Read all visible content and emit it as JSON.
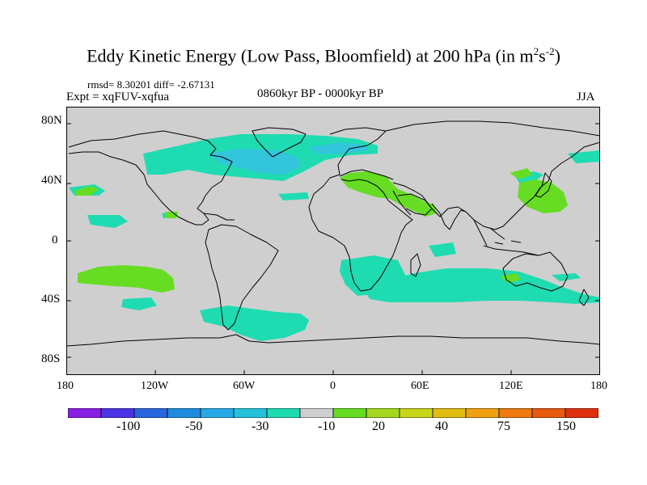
{
  "header": {
    "title_main": "Eddy Kinetic Energy (Low Pass, Bloomfield) at 200 hPa (in m",
    "title_sup1": "2",
    "title_mid": "s",
    "title_sup2": "-2",
    "title_end": ")",
    "rmsd_text": "rmsd= 8.30201 diff= -2.67131",
    "expt_text": "Expt = xqFUV-xqfua",
    "period_text": "0860kyr BP - 0000kyr BP",
    "season_text": "JJA"
  },
  "map": {
    "y_ticks": [
      "80N",
      "40N",
      "0",
      "40S",
      "80S"
    ],
    "x_ticks": [
      "180",
      "120W",
      "60W",
      "0",
      "60E",
      "120E",
      "180"
    ],
    "background_color": "#cfcfcf",
    "coastline_color": "#000000",
    "anomaly_regions": [
      {
        "name": "north-atlantic-negative",
        "level": "-10 to -30",
        "color": "#1fdbb2"
      },
      {
        "name": "north-atlantic-core",
        "level": "-30 to -50",
        "color": "#33c5dc"
      },
      {
        "name": "southern-ocean-negative",
        "level": "-10 to -30",
        "color": "#1fdbb2"
      },
      {
        "name": "mediterranean-positive",
        "level": "10 to 20",
        "color": "#66dd22"
      },
      {
        "name": "japan-positive",
        "level": "10 to 20",
        "color": "#66dd22"
      },
      {
        "name": "south-pacific-positive",
        "level": "10 to 20",
        "color": "#66dd22"
      }
    ]
  },
  "colorbar": {
    "colors": [
      "#8a1fe6",
      "#4d33e6",
      "#2a66dd",
      "#1f8ce0",
      "#26a9e6",
      "#26c2dc",
      "#1fdbb2",
      "#cfcfcf",
      "#66dd22",
      "#a3d81f",
      "#c8d61a",
      "#e0bd10",
      "#f0a010",
      "#ee7a10",
      "#e85a10",
      "#dd3110"
    ],
    "labels": [
      "-100",
      "-50",
      "-30",
      "-10",
      "20",
      "40",
      "75",
      "150"
    ]
  }
}
